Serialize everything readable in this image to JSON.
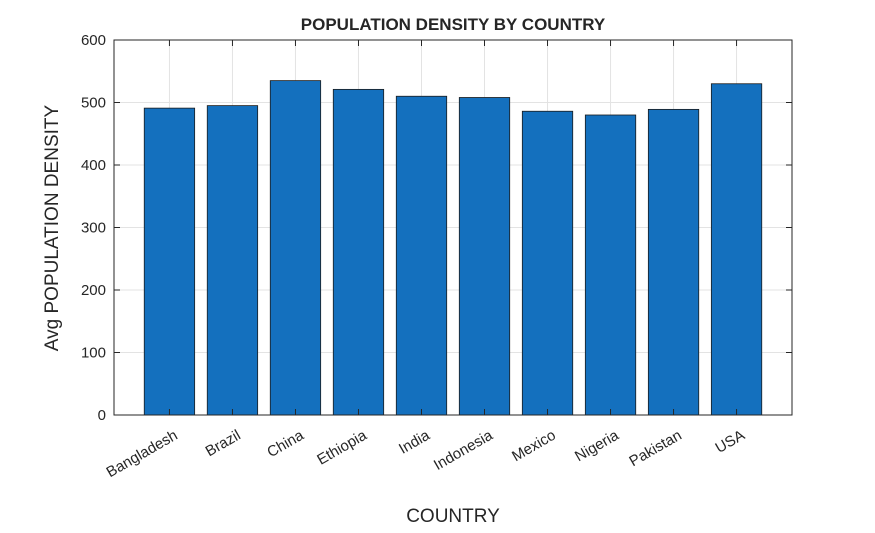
{
  "chart_data": {
    "type": "bar",
    "title": "POPULATION DENSITY BY COUNTRY",
    "xlabel": "COUNTRY",
    "ylabel": "Avg POPULATION DENSITY",
    "categories": [
      "Bangladesh",
      "Brazil",
      "China",
      "Ethiopia",
      "India",
      "Indonesia",
      "Mexico",
      "Nigeria",
      "Pakistan",
      "USA"
    ],
    "values": [
      491,
      495,
      535,
      521,
      510,
      508,
      486,
      480,
      489,
      530
    ],
    "ylim": [
      0,
      600
    ],
    "yticks": [
      0,
      100,
      200,
      300,
      400,
      500,
      600
    ],
    "grid": true,
    "bar_color": "#1470BE",
    "bar_edge_color": "#1a1a1a"
  }
}
